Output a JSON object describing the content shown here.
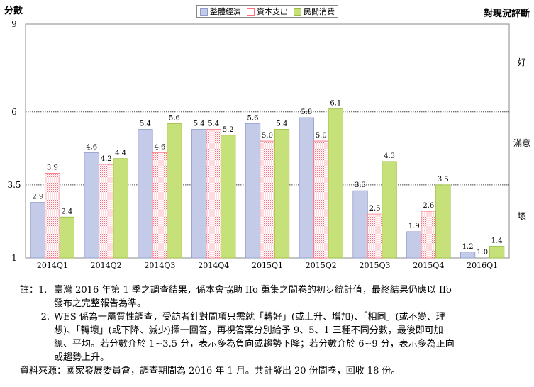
{
  "header": {
    "left_label": "分數",
    "right_label": "對現況評斷"
  },
  "right_axis": {
    "labels": [
      "好",
      "滿意",
      "壞"
    ]
  },
  "legend": {
    "items": [
      "整體經濟",
      "資本支出",
      "民間消費"
    ]
  },
  "colors": {
    "series1": "#c4cbe8",
    "series2": "#ff9999",
    "series3": "#c6e07a"
  },
  "chart_data": {
    "type": "bar",
    "categories": [
      "2014Q1",
      "2014Q2",
      "2014Q3",
      "2014Q4",
      "2015Q1",
      "2015Q2",
      "2015Q3",
      "2015Q4",
      "2016Q1"
    ],
    "series": [
      {
        "name": "整體經濟",
        "values": [
          2.9,
          4.6,
          5.4,
          5.4,
          5.6,
          5.8,
          3.3,
          1.9,
          1.2
        ]
      },
      {
        "name": "資本支出",
        "values": [
          3.9,
          4.2,
          4.6,
          5.4,
          5.0,
          5.0,
          2.5,
          2.6,
          1.0
        ]
      },
      {
        "name": "民間消費",
        "values": [
          2.4,
          4.4,
          5.6,
          5.2,
          5.4,
          6.1,
          4.3,
          3.5,
          1.4
        ]
      }
    ],
    "yticks": [
      "9",
      "6",
      "3.5",
      "1"
    ],
    "ylim": [
      1,
      9
    ],
    "ref_lines": [
      6,
      3.5
    ],
    "xlabel": "",
    "ylabel": "分數"
  },
  "notes": {
    "prefix": "註：",
    "items": [
      {
        "num": "1.",
        "lines": [
          "臺灣 2016 年第 1 季之調查結果，係本會協助 Ifo 蒐集之問卷的初步統計值，最終結果仍應以 Ifo",
          "發布之完整報告為準。"
        ]
      },
      {
        "num": "2.",
        "lines": [
          "WES 係為一屬質性調查，受訪者針對問項只需就「轉好」(或上升、增加)、「相同」(或不變、理",
          "想)、「轉壞」(或下降、減少)擇一回答，再視答案分別給予 9、5、1 三種不同分數，最後即可加",
          "總、平均。若分數介於 1~3.5 分，表示多為負向或趨勢下降；若分數介於 6~9 分，表示多為正向",
          "或趨勢上升。"
        ]
      }
    ],
    "source": "資料來源：國家發展委員會，調查期間為 2016 年 1 月。共計發出 20 份問卷，回收 18 份。"
  }
}
